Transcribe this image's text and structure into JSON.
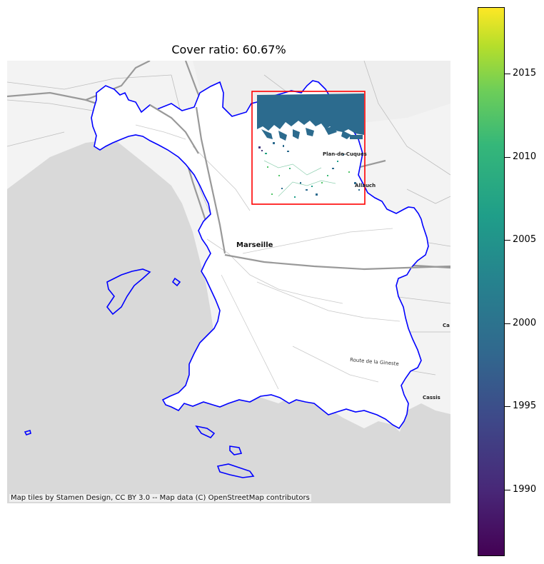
{
  "title": "Cover ratio: 60.67%",
  "attribution": "Map tiles by Stamen Design, CC BY 3.0 -- Map data (C) OpenStreetMap contributors",
  "labels": {
    "city": "Marseille",
    "plan": "Plan-de-Cuques",
    "allauch": "Allauch",
    "route": "Route de la Gineste",
    "cassis": "Cassis",
    "edge": "Ca"
  },
  "colorbar": {
    "min": 1986,
    "max": 2019,
    "ticks": [
      "1990",
      "1995",
      "2000",
      "2005",
      "2010",
      "2015"
    ],
    "colormap": "viridis"
  },
  "colors": {
    "boundary": "#0000ff",
    "bbox": "#ff0000",
    "sea": "#d9d9d9",
    "land": "#f4f4f4"
  }
}
